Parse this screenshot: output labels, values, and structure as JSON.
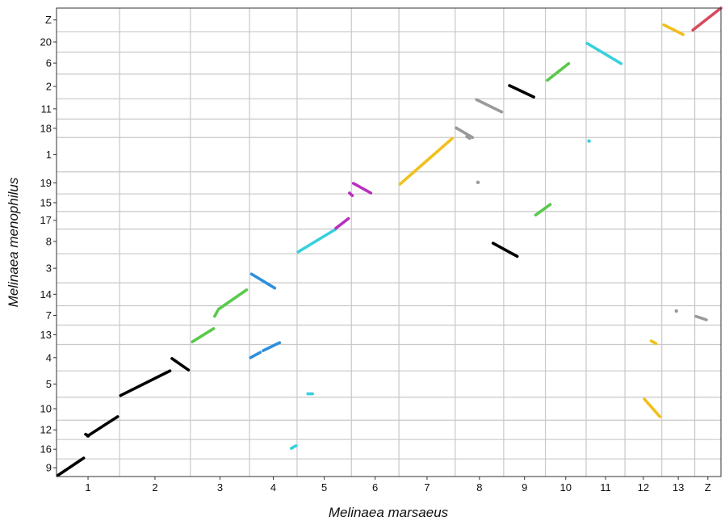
{
  "chart_data": {
    "type": "scatter",
    "title": "",
    "xlabel": "Melinaea marsaeus",
    "ylabel": "Melinaea menophilus",
    "grid": true,
    "legend": "none",
    "x_axis": {
      "chromosomes": [
        "1",
        "2",
        "3",
        "4",
        "5",
        "6",
        "7",
        "8",
        "9",
        "10",
        "11",
        "12",
        "13",
        "Z"
      ],
      "boundaries": [
        0,
        6.5,
        13.8,
        19.9,
        24.8,
        30.4,
        35.3,
        41.1,
        46.1,
        50.4,
        54.6,
        58.6,
        62.4,
        65.8,
        68.5
      ]
    },
    "y_axis": {
      "chromosomes_bottom_to_top": [
        "9",
        "16",
        "12",
        "10",
        "5",
        "4",
        "13",
        "7",
        "14",
        "3",
        "8",
        "17",
        "15",
        "19",
        "1",
        "18",
        "11",
        "2",
        "6",
        "20",
        "Z"
      ],
      "boundaries": [
        0,
        2.0,
        4.2,
        6.4,
        9.0,
        12.0,
        15.0,
        17.2,
        19.4,
        22.0,
        25.3,
        28.1,
        30.1,
        32.1,
        34.6,
        38.5,
        40.6,
        42.9,
        45.7,
        48.2,
        50.5,
        53.2
      ]
    },
    "colors": {
      "1": "#000000",
      "2": "#000000",
      "3": "#5ac94d",
      "4": "#2e8fdc",
      "5": "#38d0dc",
      "6": "#b92fbf",
      "7": "#f2bf1c",
      "8": "#9a9a9a",
      "9": "#000000",
      "10": "#5ac94d",
      "11": "#38d0dc",
      "12": "#f2bf1c",
      "13": "#9a9a9a",
      "Z": "#d94a5e"
    },
    "series": [
      {
        "chromosome": "1",
        "segments": [
          {
            "x": [
              0.1,
              2.8
            ],
            "y": [
              0.1,
              2.1
            ]
          },
          {
            "x": [
              3.2,
              6.3
            ],
            "y": [
              4.6,
              6.8
            ]
          },
          {
            "x": [
              3.0,
              3.3
            ],
            "y": [
              4.8,
              4.6
            ]
          }
        ]
      },
      {
        "chromosome": "2",
        "segments": [
          {
            "x": [
              6.6,
              11.7
            ],
            "y": [
              9.2,
              12.0
            ]
          },
          {
            "x": [
              11.9,
              13.6
            ],
            "y": [
              13.4,
              12.1
            ]
          }
        ]
      },
      {
        "chromosome": "3",
        "segments": [
          {
            "x": [
              14.0,
              16.2
            ],
            "y": [
              15.3,
              16.8
            ]
          },
          {
            "x": [
              16.3,
              16.6
            ],
            "y": [
              18.2,
              18.8
            ]
          },
          {
            "x": [
              16.7,
              19.6
            ],
            "y": [
              19.0,
              21.2
            ]
          }
        ]
      },
      {
        "chromosome": "4",
        "segments": [
          {
            "x": [
              20.0,
              21.0
            ],
            "y": [
              13.5,
              14.1
            ]
          },
          {
            "x": [
              21.3,
              23.0
            ],
            "y": [
              14.3,
              15.2
            ]
          },
          {
            "x": [
              20.1,
              22.5
            ],
            "y": [
              23.0,
              21.4
            ]
          }
        ]
      },
      {
        "chromosome": "5",
        "segments": [
          {
            "x": [
              24.9,
              28.8
            ],
            "y": [
              25.5,
              28.1
            ]
          },
          {
            "x": [
              25.9,
              26.4
            ],
            "y": [
              9.4,
              9.4
            ]
          },
          {
            "x": [
              24.2,
              24.7
            ],
            "y": [
              3.2,
              3.5
            ]
          }
        ]
      },
      {
        "chromosome": "6",
        "segments": [
          {
            "x": [
              28.8,
              30.1
            ],
            "y": [
              28.2,
              29.3
            ]
          },
          {
            "x": [
              30.2,
              30.5
            ],
            "y": [
              32.2,
              31.9
            ]
          },
          {
            "x": [
              30.6,
              32.4
            ],
            "y": [
              33.3,
              32.2
            ]
          }
        ]
      },
      {
        "chromosome": "7",
        "segments": [
          {
            "x": [
              35.4,
              40.8
            ],
            "y": [
              33.2,
              38.4
            ]
          }
        ]
      },
      {
        "chromosome": "8",
        "segments": [
          {
            "x": [
              41.2,
              42.9
            ],
            "y": [
              39.6,
              38.5
            ]
          },
          {
            "x": [
              42.3,
              42.6
            ],
            "y": [
              38.6,
              38.4
            ]
          },
          {
            "x": [
              43.3,
              45.9
            ],
            "y": [
              42.8,
              41.4
            ]
          },
          {
            "x": [
              43.4,
              43.5
            ],
            "y": [
              33.4,
              33.4
            ]
          }
        ]
      },
      {
        "chromosome": "9",
        "segments": [
          {
            "x": [
              46.7,
              49.2
            ],
            "y": [
              44.4,
              43.1
            ]
          },
          {
            "x": [
              45.0,
              47.5
            ],
            "y": [
              26.5,
              25.0
            ]
          }
        ]
      },
      {
        "chromosome": "10",
        "segments": [
          {
            "x": [
              50.6,
              52.8
            ],
            "y": [
              45.0,
              46.9
            ]
          },
          {
            "x": [
              49.4,
              50.9
            ],
            "y": [
              29.7,
              30.9
            ]
          }
        ]
      },
      {
        "chromosome": "11",
        "segments": [
          {
            "x": [
              54.7,
              58.2
            ],
            "y": [
              49.2,
              46.9
            ]
          },
          {
            "x": [
              54.8,
              55.0
            ],
            "y": [
              38.1,
              38.1
            ]
          }
        ]
      },
      {
        "chromosome": "12",
        "segments": [
          {
            "x": [
              62.6,
              64.6
            ],
            "y": [
              51.3,
              50.2
            ]
          },
          {
            "x": [
              61.3,
              61.8
            ],
            "y": [
              15.4,
              15.1
            ]
          },
          {
            "x": [
              60.6,
              62.2
            ],
            "y": [
              8.8,
              6.8
            ]
          }
        ]
      },
      {
        "chromosome": "13",
        "segments": [
          {
            "x": [
              63.8,
              64.0
            ],
            "y": [
              18.8,
              18.8
            ]
          },
          {
            "x": [
              65.9,
              67.0
            ],
            "y": [
              18.2,
              17.8
            ]
          }
        ]
      },
      {
        "chromosome": "Z",
        "segments": [
          {
            "x": [
              65.6,
              68.5
            ],
            "y": [
              50.7,
              53.2
            ]
          }
        ]
      }
    ]
  }
}
